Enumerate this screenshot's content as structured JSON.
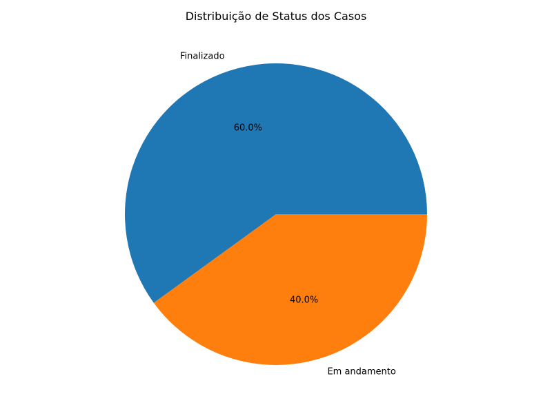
{
  "chart_data": {
    "type": "pie",
    "title": "Distribuição de Status dos Casos",
    "start_angle_deg": 0,
    "direction": "counterclockwise",
    "slices": [
      {
        "label": "Finalizado",
        "value": 60.0,
        "pct_label": "60.0%",
        "color": "#1f77b4"
      },
      {
        "label": "Em andamento",
        "value": 40.0,
        "pct_label": "40.0%",
        "color": "#ff7f0e"
      }
    ]
  }
}
